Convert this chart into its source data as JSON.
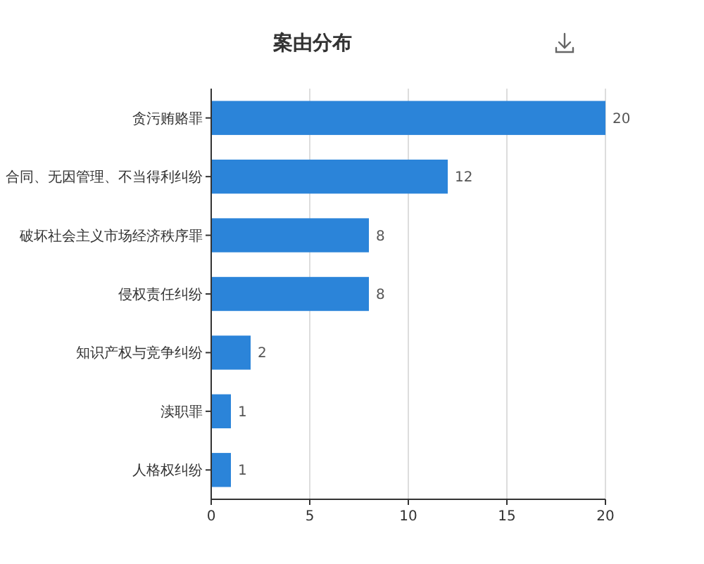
{
  "chart_data": {
    "type": "bar",
    "orientation": "horizontal",
    "title": "案由分布",
    "categories": [
      "贪污贿赂罪",
      "合同、无因管理、不当得利纠纷",
      "破坏社会主义市场经济秩序罪",
      "侵权责任纠纷",
      "知识产权与竞争纠纷",
      "渎职罪",
      "人格权纠纷"
    ],
    "values": [
      20,
      12,
      8,
      8,
      2,
      1,
      1
    ],
    "color": "#2b84d9",
    "xlim": [
      0,
      20
    ],
    "xticks": [
      0,
      5,
      10,
      15,
      20
    ],
    "grid": "x",
    "data_labels": true
  }
}
